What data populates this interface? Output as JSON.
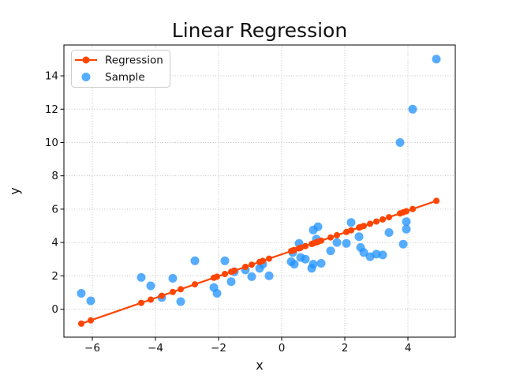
{
  "figure": {
    "title": "Linear Regression",
    "xlabel": "x",
    "ylabel": "y"
  },
  "legend": {
    "position": "upper-left",
    "items": [
      {
        "label": "Regression",
        "marker": "line-with-dot",
        "color": "#FF4500"
      },
      {
        "label": "Sample",
        "marker": "dot",
        "color": "#1E90FF"
      }
    ]
  },
  "chart_data": {
    "type": "scatter",
    "title": "Linear Regression",
    "xlabel": "x",
    "ylabel": "y",
    "xlim": [
      -6.9,
      5.5
    ],
    "ylim": [
      -1.68,
      15.85
    ],
    "xticks": [
      -6,
      -4,
      -2,
      0,
      2,
      4
    ],
    "yticks": [
      0,
      2,
      4,
      6,
      8,
      10,
      12,
      14
    ],
    "grid": true,
    "grid_style": "dotted",
    "legend_position": "upper-left",
    "series": [
      {
        "name": "Regression",
        "type": "line-with-markers",
        "color": "#FF4500",
        "slope": 0.655,
        "intercept": 3.29,
        "marker_x": [
          -6.35,
          -6.05,
          -4.45,
          -4.15,
          -3.8,
          -3.45,
          -3.2,
          -2.75,
          -2.15,
          -2.05,
          -1.8,
          -1.6,
          -1.5,
          -1.15,
          -0.95,
          -0.7,
          -0.6,
          -0.4,
          0.3,
          0.35,
          0.4,
          0.55,
          0.6,
          0.75,
          0.95,
          1.0,
          1.1,
          1.15,
          1.25,
          1.55,
          1.75,
          2.05,
          2.2,
          2.45,
          2.5,
          2.6,
          2.8,
          3.0,
          3.2,
          3.4,
          3.75,
          3.85,
          3.95,
          4.15,
          4.9
        ]
      },
      {
        "name": "Sample",
        "type": "scatter",
        "color": "#1E90FF",
        "opacity": 0.75,
        "points": [
          [
            -6.35,
            0.95
          ],
          [
            -6.05,
            0.5
          ],
          [
            -4.45,
            1.9
          ],
          [
            -4.15,
            1.4
          ],
          [
            -3.8,
            0.7
          ],
          [
            -3.45,
            1.85
          ],
          [
            -3.2,
            0.45
          ],
          [
            -2.75,
            2.9
          ],
          [
            -2.15,
            1.3
          ],
          [
            -2.05,
            0.95
          ],
          [
            -1.8,
            2.9
          ],
          [
            -1.6,
            1.65
          ],
          [
            -1.5,
            2.25
          ],
          [
            -1.15,
            2.35
          ],
          [
            -0.95,
            1.95
          ],
          [
            -0.7,
            2.45
          ],
          [
            -0.6,
            2.7
          ],
          [
            -0.4,
            2.0
          ],
          [
            0.3,
            2.85
          ],
          [
            0.35,
            3.4
          ],
          [
            0.4,
            2.7
          ],
          [
            0.55,
            3.95
          ],
          [
            0.6,
            3.1
          ],
          [
            0.75,
            3.0
          ],
          [
            0.95,
            2.45
          ],
          [
            1.0,
            2.7
          ],
          [
            1.0,
            4.75
          ],
          [
            1.1,
            4.2
          ],
          [
            1.15,
            4.95
          ],
          [
            1.25,
            2.75
          ],
          [
            1.55,
            3.5
          ],
          [
            1.75,
            4.0
          ],
          [
            2.05,
            3.95
          ],
          [
            2.2,
            5.2
          ],
          [
            2.45,
            4.35
          ],
          [
            2.5,
            3.7
          ],
          [
            2.6,
            3.4
          ],
          [
            2.8,
            3.15
          ],
          [
            3.0,
            3.3
          ],
          [
            3.2,
            3.25
          ],
          [
            3.4,
            4.6
          ],
          [
            3.75,
            10.0
          ],
          [
            3.85,
            3.9
          ],
          [
            3.95,
            4.8
          ],
          [
            3.95,
            5.25
          ],
          [
            4.15,
            12.0
          ],
          [
            4.9,
            15.0
          ]
        ]
      }
    ]
  }
}
